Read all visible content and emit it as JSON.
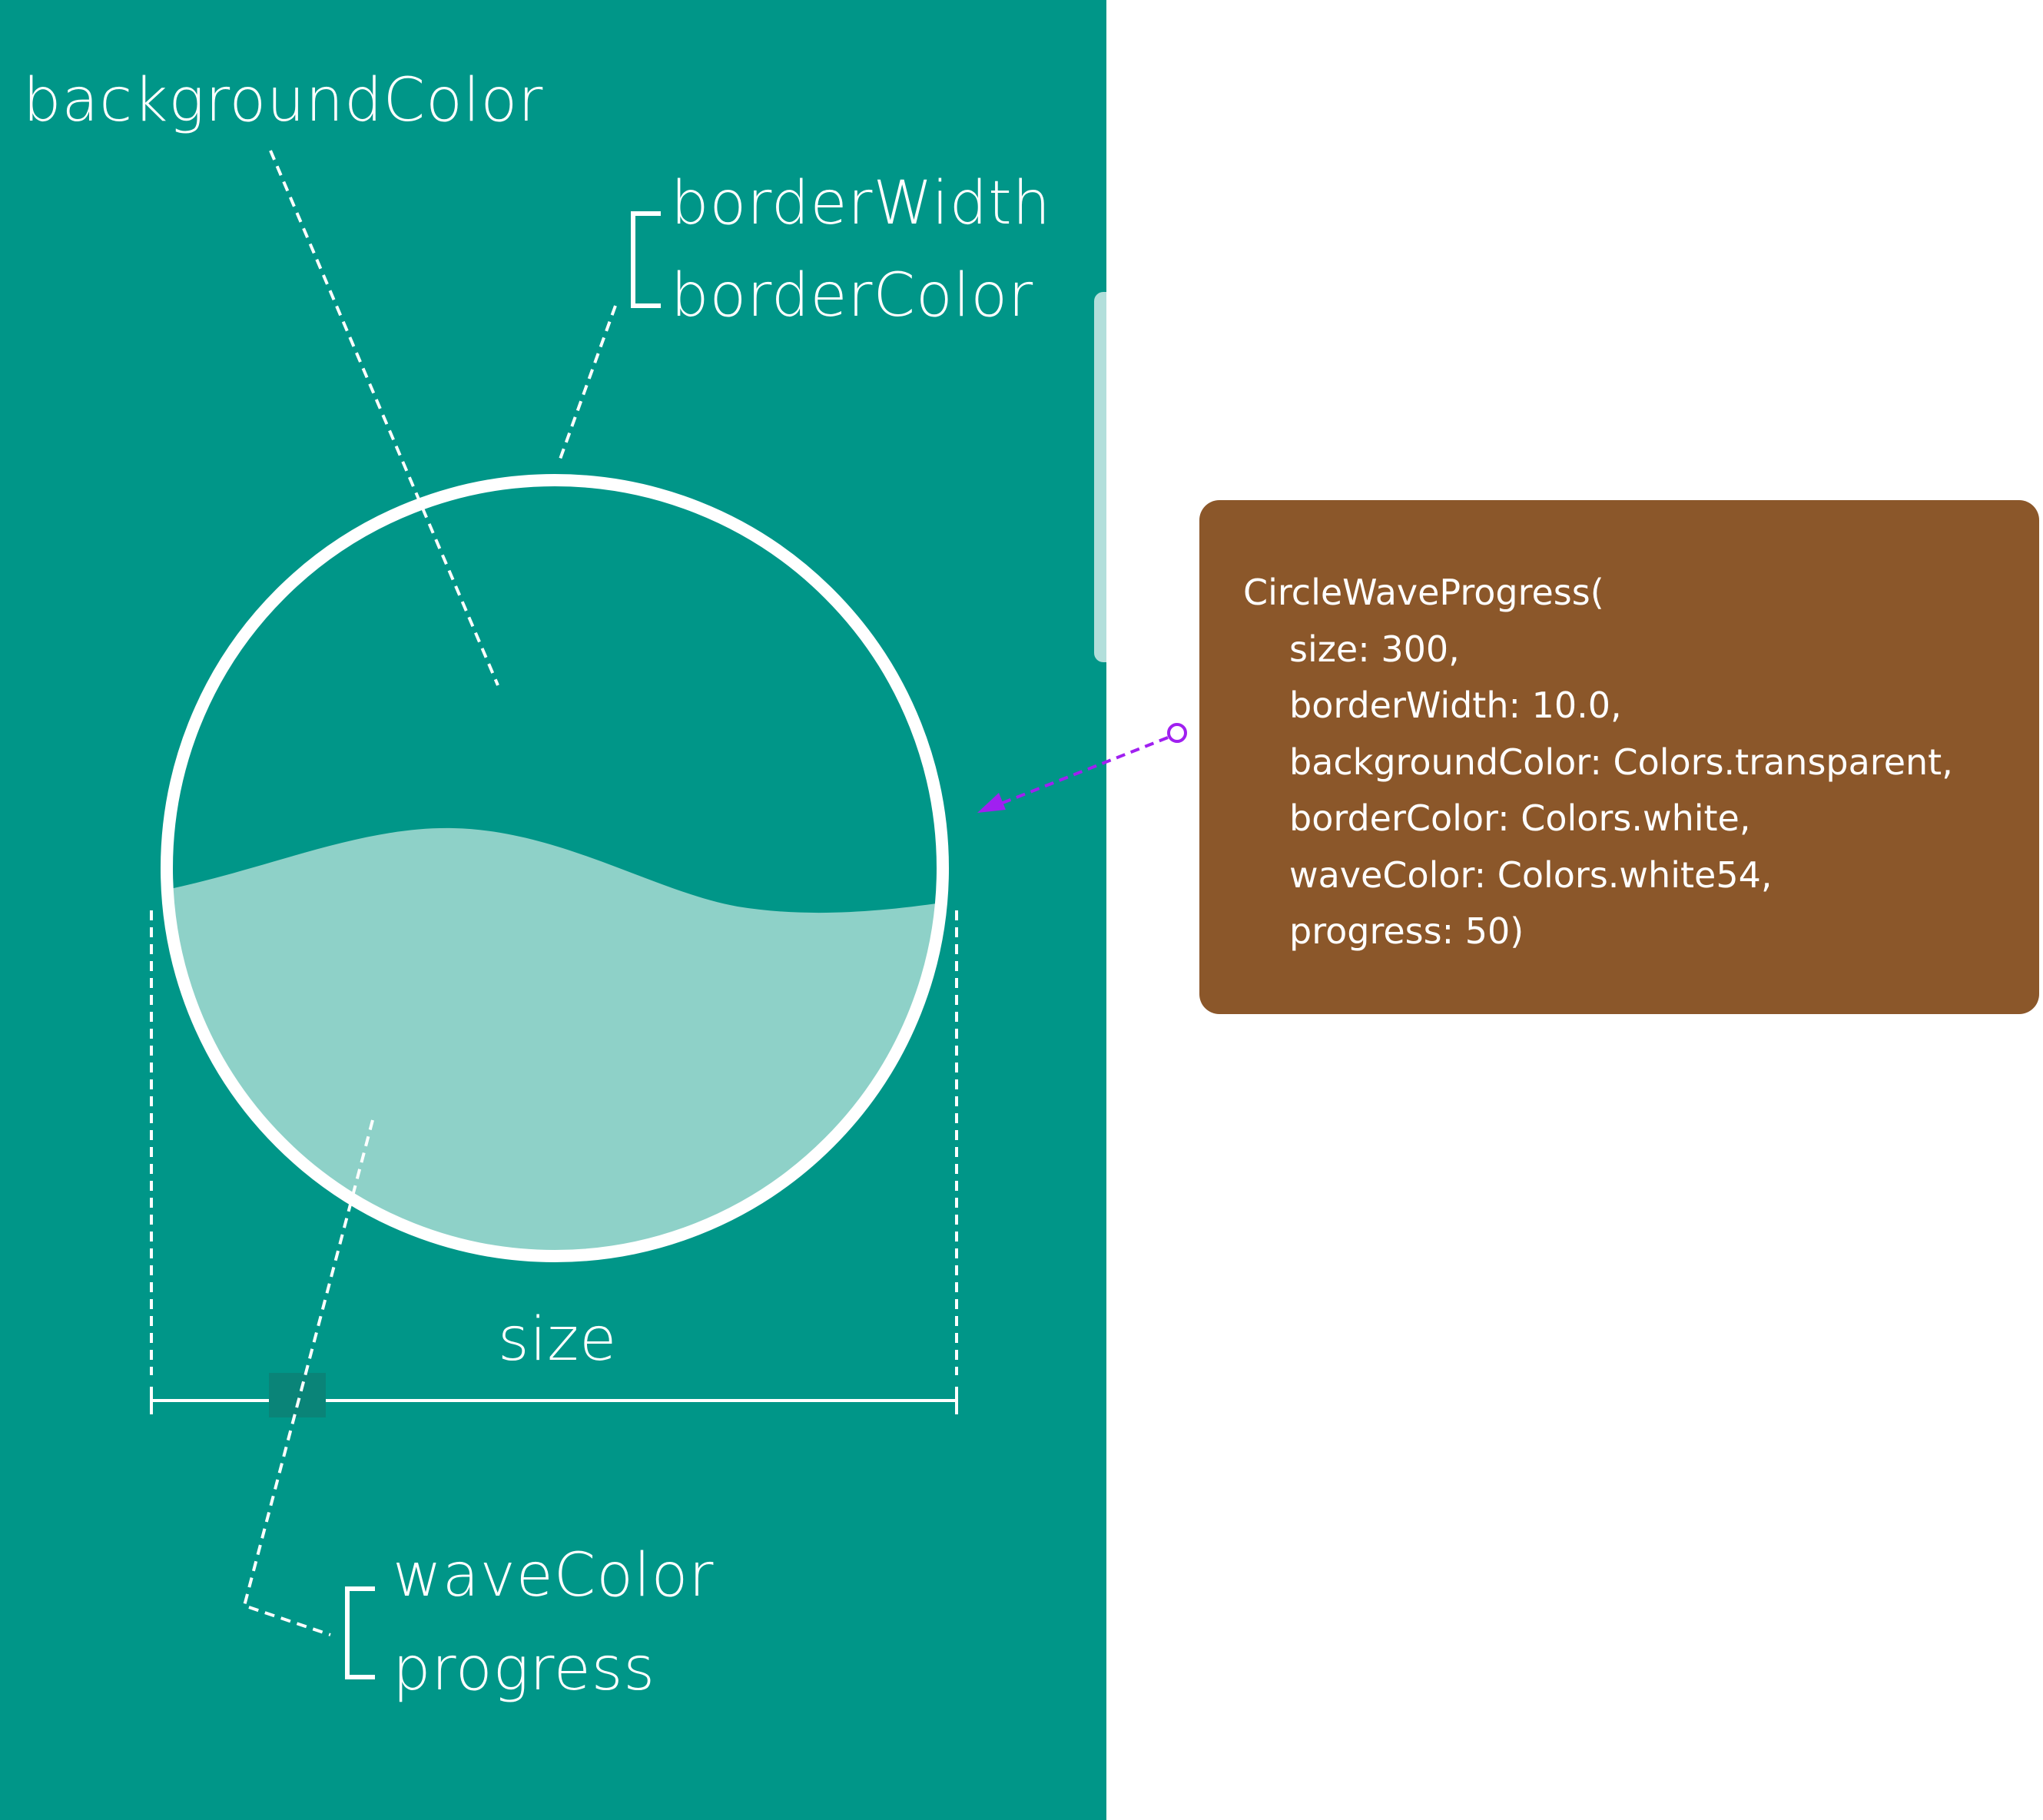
{
  "labels": {
    "background_color": "backgroundColor",
    "border_width": "borderWidth",
    "border_color": "borderColor",
    "size": "size",
    "wave_color": "waveColor",
    "progress": "progress"
  },
  "code": {
    "lines": [
      "CircleWaveProgress(",
      "size: 300,",
      "borderWidth: 10.0,",
      "backgroundColor: Colors.transparent,",
      "borderColor: Colors.white,",
      "waveColor: Colors.white54,",
      "progress: 50)"
    ]
  },
  "colors": {
    "panel_background": "#009688",
    "circle_border": "#ffffff",
    "wave_fill": "#8ed1c8",
    "code_card": "#8b572a",
    "pointer_arrow": "#a020f0"
  },
  "widget": {
    "progress_percent": 50
  }
}
